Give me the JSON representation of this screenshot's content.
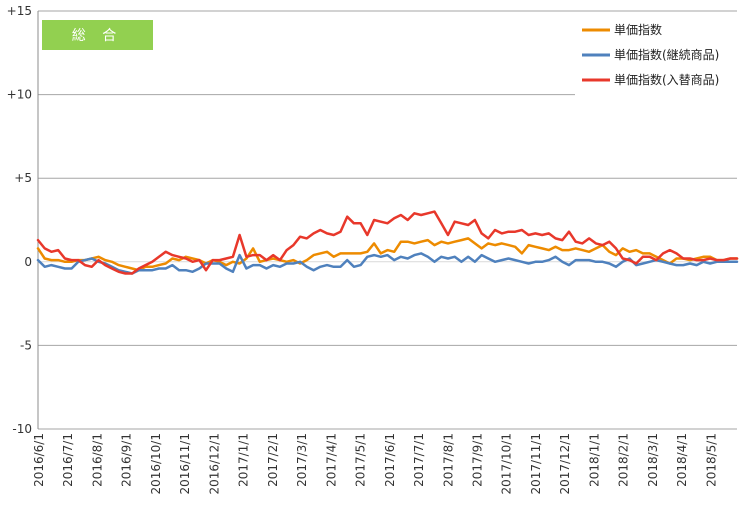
{
  "badge": {
    "label": "総 合",
    "color": "#92d050"
  },
  "chart_data": {
    "type": "line",
    "title": "",
    "xlabel": "",
    "ylabel": "",
    "ylim": [
      -10,
      15
    ],
    "grid": true,
    "legend_position": "top-right",
    "y_ticks": [
      {
        "value": 15,
        "label": "+15"
      },
      {
        "value": 10,
        "label": "+10"
      },
      {
        "value": 5,
        "label": "+5"
      },
      {
        "value": 0,
        "label": "0"
      },
      {
        "value": -5,
        "label": "-5"
      },
      {
        "value": -10,
        "label": "-10"
      }
    ],
    "x_tick_labels": [
      "2016/6/1",
      "2016/7/1",
      "2016/8/1",
      "2016/9/1",
      "2016/10/1",
      "2016/11/1",
      "2016/12/1",
      "2017/1/1",
      "2017/2/1",
      "2017/3/1",
      "2017/4/1",
      "2017/5/1",
      "2017/6/1",
      "2017/7/1",
      "2017/8/1",
      "2017/9/1",
      "2017/10/1",
      "2017/11/1",
      "2017/12/1",
      "2018/1/1",
      "2018/2/1",
      "2018/3/1",
      "2018/4/1",
      "2018/5/1"
    ],
    "series": [
      {
        "name": "単価指数",
        "color": "#ed8b00",
        "values": [
          0.8,
          0.2,
          0.1,
          0.1,
          0,
          0,
          0.1,
          0.1,
          0.2,
          0.3,
          0.1,
          0,
          -0.2,
          -0.3,
          -0.4,
          -0.5,
          -0.3,
          -0.3,
          -0.2,
          -0.1,
          0.2,
          0.1,
          0.3,
          0.2,
          0.1,
          -0.1,
          0.1,
          0,
          -0.2,
          0,
          -0.1,
          0.2,
          0.8,
          0,
          0.1,
          0.2,
          0.1,
          0,
          0.1,
          -0.1,
          0.1,
          0.4,
          0.5,
          0.6,
          0.3,
          0.5,
          0.5,
          0.5,
          0.5,
          0.6,
          1.1,
          0.5,
          0.7,
          0.6,
          1.2,
          1.2,
          1.1,
          1.2,
          1.3,
          1.0,
          1.2,
          1.1,
          1.2,
          1.3,
          1.4,
          1.1,
          0.8,
          1.1,
          1.0,
          1.1,
          1.0,
          0.9,
          0.5,
          1.0,
          0.9,
          0.8,
          0.7,
          0.9,
          0.7,
          0.7,
          0.8,
          0.7,
          0.6,
          0.8,
          1.0,
          0.6,
          0.4,
          0.8,
          0.6,
          0.7,
          0.5,
          0.5,
          0.3,
          0.1,
          -0.1,
          0.2,
          0.2,
          0.1,
          0.2,
          0.3,
          0.3,
          0.1,
          0.1,
          0.2,
          0.2
        ]
      },
      {
        "name": "単価指数(継続商品)",
        "color": "#4f81bd",
        "values": [
          0.1,
          -0.3,
          -0.2,
          -0.3,
          -0.4,
          -0.4,
          0,
          0.1,
          0.2,
          0,
          -0.1,
          -0.3,
          -0.5,
          -0.6,
          -0.7,
          -0.5,
          -0.5,
          -0.5,
          -0.4,
          -0.4,
          -0.2,
          -0.5,
          -0.5,
          -0.6,
          -0.4,
          -0.1,
          -0.1,
          -0.1,
          -0.4,
          -0.6,
          0.4,
          -0.4,
          -0.2,
          -0.2,
          -0.4,
          -0.2,
          -0.3,
          -0.1,
          -0.1,
          0,
          -0.3,
          -0.5,
          -0.3,
          -0.2,
          -0.3,
          -0.3,
          0.1,
          -0.3,
          -0.2,
          0.3,
          0.4,
          0.3,
          0.4,
          0.1,
          0.3,
          0.2,
          0.4,
          0.5,
          0.3,
          0,
          0.3,
          0.2,
          0.3,
          0,
          0.3,
          0,
          0.4,
          0.2,
          0,
          0.1,
          0.2,
          0.1,
          0,
          -0.1,
          0,
          0,
          0.1,
          0.3,
          0,
          -0.2,
          0.1,
          0.1,
          0.1,
          0,
          0,
          -0.1,
          -0.3,
          0,
          0.2,
          -0.2,
          -0.1,
          0,
          0.1,
          0,
          -0.1,
          -0.2,
          -0.2,
          -0.1,
          -0.2,
          0,
          -0.1,
          0,
          0,
          0,
          0
        ]
      },
      {
        "name": "単価指数(入替商品)",
        "color": "#e8382b",
        "values": [
          1.3,
          0.8,
          0.6,
          0.7,
          0.2,
          0.1,
          0.1,
          -0.2,
          -0.3,
          0.1,
          -0.2,
          -0.4,
          -0.6,
          -0.7,
          -0.7,
          -0.4,
          -0.2,
          0,
          0.3,
          0.6,
          0.4,
          0.3,
          0.2,
          0,
          0.1,
          -0.5,
          0.1,
          0.1,
          0.2,
          0.3,
          1.6,
          0.3,
          0.4,
          0.4,
          0.1,
          0.4,
          0.1,
          0.7,
          1.0,
          1.5,
          1.4,
          1.7,
          1.9,
          1.7,
          1.6,
          1.8,
          2.7,
          2.3,
          2.3,
          1.6,
          2.5,
          2.4,
          2.3,
          2.6,
          2.8,
          2.5,
          2.9,
          2.8,
          2.9,
          3.0,
          2.3,
          1.6,
          2.4,
          2.3,
          2.2,
          2.5,
          1.7,
          1.4,
          1.9,
          1.7,
          1.8,
          1.8,
          1.9,
          1.6,
          1.7,
          1.6,
          1.7,
          1.4,
          1.3,
          1.8,
          1.2,
          1.1,
          1.4,
          1.1,
          1.0,
          1.2,
          0.8,
          0.2,
          0.1,
          -0.1,
          0.3,
          0.3,
          0.1,
          0.5,
          0.7,
          0.5,
          0.2,
          0.2,
          0.1,
          0.1,
          0.2,
          0.1,
          0.1,
          0.2,
          0.2
        ]
      }
    ]
  }
}
